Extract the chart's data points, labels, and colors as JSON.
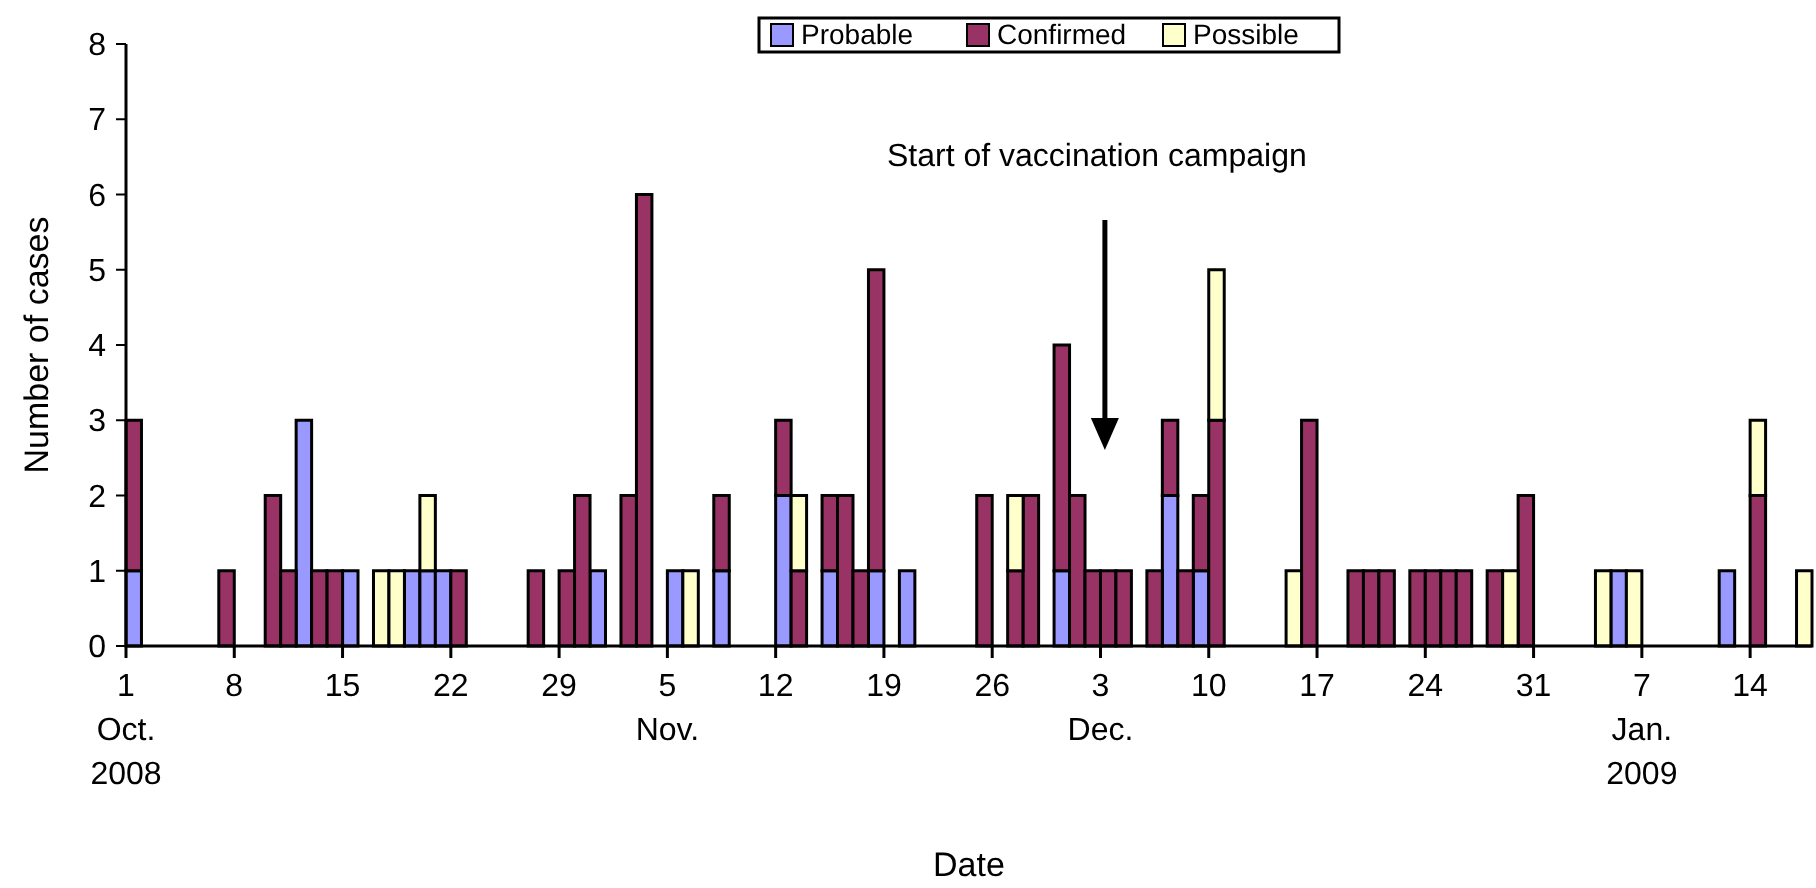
{
  "chart_data": {
    "type": "bar",
    "stacked": true,
    "xlabel": "Date",
    "ylabel": "Number of cases",
    "x": [
      "2008-10-01",
      "2008-10-07",
      "2008-10-10",
      "2008-10-11",
      "2008-10-12",
      "2008-10-13",
      "2008-10-14",
      "2008-10-15",
      "2008-10-17",
      "2008-10-18",
      "2008-10-19",
      "2008-10-20",
      "2008-10-21",
      "2008-10-22",
      "2008-10-27",
      "2008-10-29",
      "2008-10-30",
      "2008-10-31",
      "2008-11-02",
      "2008-11-03",
      "2008-11-05",
      "2008-11-06",
      "2008-11-08",
      "2008-11-12",
      "2008-11-13",
      "2008-11-15",
      "2008-11-16",
      "2008-11-17",
      "2008-11-18",
      "2008-11-20",
      "2008-11-25",
      "2008-11-27",
      "2008-11-28",
      "2008-11-30",
      "2008-12-01",
      "2008-12-02",
      "2008-12-03",
      "2008-12-04",
      "2008-12-06",
      "2008-12-07",
      "2008-12-08",
      "2008-12-09",
      "2008-12-10",
      "2008-12-15",
      "2008-12-16",
      "2008-12-19",
      "2008-12-20",
      "2008-12-21",
      "2008-12-23",
      "2008-12-24",
      "2008-12-25",
      "2008-12-26",
      "2008-12-28",
      "2008-12-29",
      "2008-12-30",
      "2009-01-04",
      "2009-01-05",
      "2009-01-06",
      "2009-01-12",
      "2009-01-14",
      "2009-01-17"
    ],
    "series": [
      {
        "name": "Probable",
        "color": "#9999ff",
        "values": [
          1,
          0,
          0,
          0,
          3,
          0,
          0,
          1,
          0,
          0,
          1,
          1,
          1,
          0,
          0,
          0,
          0,
          1,
          0,
          0,
          1,
          0,
          1,
          2,
          0,
          1,
          0,
          0,
          1,
          1,
          0,
          0,
          0,
          1,
          0,
          0,
          0,
          0,
          0,
          2,
          0,
          1,
          0,
          0,
          0,
          0,
          0,
          0,
          0,
          0,
          0,
          0,
          0,
          0,
          0,
          0,
          1,
          0,
          1,
          0,
          0
        ]
      },
      {
        "name": "Confirmed",
        "color": "#993366",
        "values": [
          2,
          1,
          2,
          1,
          0,
          1,
          1,
          0,
          0,
          0,
          0,
          0,
          0,
          1,
          1,
          1,
          2,
          0,
          2,
          6,
          0,
          0,
          1,
          1,
          1,
          1,
          2,
          1,
          4,
          0,
          2,
          1,
          2,
          3,
          2,
          1,
          1,
          1,
          1,
          1,
          1,
          1,
          3,
          0,
          3,
          1,
          1,
          1,
          1,
          1,
          1,
          1,
          1,
          0,
          2,
          0,
          0,
          0,
          0,
          2,
          0
        ]
      },
      {
        "name": "Possible",
        "color": "#ffffcc",
        "values": [
          0,
          0,
          0,
          0,
          0,
          0,
          0,
          0,
          1,
          1,
          0,
          1,
          0,
          0,
          0,
          0,
          0,
          0,
          0,
          0,
          0,
          1,
          0,
          0,
          1,
          0,
          0,
          0,
          0,
          0,
          0,
          1,
          0,
          0,
          0,
          0,
          0,
          0,
          0,
          0,
          0,
          0,
          2,
          1,
          0,
          0,
          0,
          0,
          0,
          0,
          0,
          0,
          0,
          1,
          0,
          1,
          0,
          1,
          0,
          1,
          1
        ]
      }
    ],
    "xlim": [
      "2008-10-01",
      "2009-01-18"
    ],
    "xticks": [
      {
        "value": "2008-10-01",
        "label": "1\nOct.\n2008"
      },
      {
        "value": "2008-10-08",
        "label": "8"
      },
      {
        "value": "2008-10-15",
        "label": "15"
      },
      {
        "value": "2008-10-22",
        "label": "22"
      },
      {
        "value": "2008-10-29",
        "label": "29"
      },
      {
        "value": "2008-11-05",
        "label": "5\nNov."
      },
      {
        "value": "2008-11-12",
        "label": "12"
      },
      {
        "value": "2008-11-19",
        "label": "19"
      },
      {
        "value": "2008-11-26",
        "label": "26"
      },
      {
        "value": "2008-12-03",
        "label": "3\nDec."
      },
      {
        "value": "2008-12-10",
        "label": "10"
      },
      {
        "value": "2008-12-17",
        "label": "17"
      },
      {
        "value": "2008-12-24",
        "label": "24"
      },
      {
        "value": "2008-12-31",
        "label": "31"
      },
      {
        "value": "2009-01-07",
        "label": "7\nJan.\n2009"
      },
      {
        "value": "2009-01-14",
        "label": "14"
      }
    ],
    "ylim": [
      0,
      8
    ],
    "yticks": [
      0,
      1,
      2,
      3,
      4,
      5,
      6,
      7,
      8
    ],
    "annotations": [
      "Start of vaccination campaign"
    ],
    "legend": "top",
    "grid": false
  }
}
